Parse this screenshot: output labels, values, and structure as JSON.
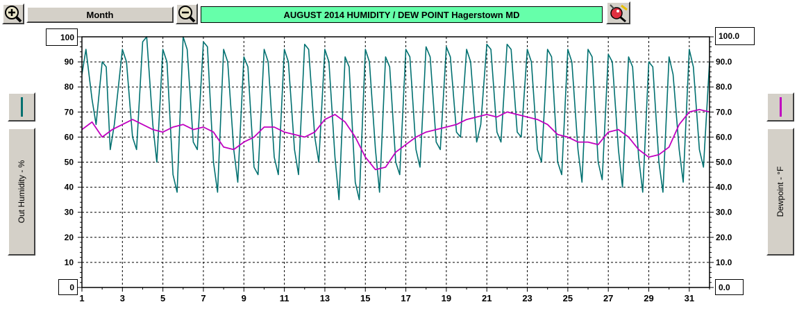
{
  "toolbar": {
    "zoom_in_icon": "magnifier-plus-icon",
    "period_label": "Month",
    "zoom_out_icon": "magnifier-minus-icon",
    "title": "AUGUST  2014  HUMIDITY / DEW POINT  Hagerstown MD",
    "settings_icon": "magnifier-wand-icon"
  },
  "left_axis": {
    "top_box": "100",
    "bottom_box": "0",
    "label": "Out Humidity - %",
    "color_swatch": "#007070"
  },
  "right_axis": {
    "top_box": "100.0",
    "bottom_box": "0.0",
    "label": "Dewpoint - °F",
    "color_swatch": "#c000c0"
  },
  "chart_data": {
    "type": "line",
    "title": "AUGUST  2014  HUMIDITY / DEW POINT  Hagerstown MD",
    "xlabel": "",
    "ylabel_left": "Out Humidity - %",
    "ylabel_right": "Dewpoint - °F",
    "xlim": [
      1,
      32
    ],
    "ylim": [
      0,
      100
    ],
    "grid": true,
    "x_ticks": [
      "1",
      "3",
      "5",
      "7",
      "9",
      "11",
      "13",
      "15",
      "17",
      "19",
      "21",
      "23",
      "25",
      "27",
      "29",
      "31"
    ],
    "y_ticks_left": [
      "10",
      "20",
      "30",
      "40",
      "50",
      "60",
      "70",
      "80",
      "90"
    ],
    "y_ticks_right": [
      "10.0",
      "20.0",
      "30.0",
      "40.0",
      "50.0",
      "60.0",
      "70.0",
      "80.0",
      "90.0"
    ],
    "series": [
      {
        "name": "Out Humidity - %",
        "color": "#007070",
        "x": [
          1.0,
          1.2,
          1.5,
          1.7,
          2.0,
          2.2,
          2.4,
          2.6,
          3.0,
          3.2,
          3.5,
          3.7,
          4.0,
          4.2,
          4.5,
          4.7,
          5.0,
          5.2,
          5.5,
          5.7,
          6.0,
          6.2,
          6.5,
          6.7,
          7.0,
          7.2,
          7.5,
          7.7,
          8.0,
          8.2,
          8.5,
          8.7,
          9.0,
          9.2,
          9.5,
          9.7,
          10.0,
          10.2,
          10.5,
          10.7,
          11.0,
          11.2,
          11.5,
          11.7,
          12.0,
          12.2,
          12.5,
          12.7,
          13.0,
          13.2,
          13.5,
          13.7,
          14.0,
          14.2,
          14.5,
          14.7,
          15.0,
          15.2,
          15.5,
          15.7,
          16.0,
          16.2,
          16.5,
          16.7,
          17.0,
          17.2,
          17.5,
          17.7,
          18.0,
          18.2,
          18.5,
          18.7,
          19.0,
          19.2,
          19.5,
          19.7,
          20.0,
          20.2,
          20.5,
          20.7,
          21.0,
          21.2,
          21.5,
          21.7,
          22.0,
          22.2,
          22.5,
          22.7,
          23.0,
          23.2,
          23.5,
          23.7,
          24.0,
          24.2,
          24.5,
          24.7,
          25.0,
          25.2,
          25.5,
          25.7,
          26.0,
          26.2,
          26.5,
          26.7,
          27.0,
          27.2,
          27.5,
          27.7,
          28.0,
          28.2,
          28.5,
          28.7,
          29.0,
          29.2,
          29.5,
          29.7,
          30.0,
          30.2,
          30.5,
          30.7,
          31.0,
          31.2,
          31.5,
          31.7,
          32.0
        ],
        "values": [
          85,
          95,
          75,
          65,
          90,
          88,
          55,
          65,
          95,
          90,
          60,
          55,
          98,
          100,
          65,
          50,
          95,
          90,
          45,
          38,
          100,
          95,
          58,
          55,
          98,
          96,
          50,
          38,
          95,
          90,
          55,
          42,
          92,
          88,
          48,
          45,
          95,
          90,
          52,
          45,
          95,
          90,
          55,
          45,
          97,
          95,
          60,
          50,
          95,
          90,
          52,
          35,
          92,
          88,
          42,
          35,
          95,
          90,
          55,
          38,
          92,
          88,
          50,
          45,
          95,
          92,
          55,
          48,
          96,
          92,
          58,
          55,
          96,
          92,
          62,
          60,
          95,
          90,
          58,
          65,
          97,
          95,
          62,
          58,
          97,
          95,
          62,
          60,
          95,
          90,
          55,
          50,
          95,
          92,
          50,
          45,
          95,
          90,
          55,
          42,
          95,
          92,
          50,
          43,
          93,
          90,
          55,
          40,
          92,
          88,
          52,
          38,
          90,
          88,
          50,
          38,
          92,
          85,
          55,
          42,
          95,
          88,
          55,
          48,
          90
        ]
      },
      {
        "name": "Dewpoint - °F",
        "color": "#c000c0",
        "x": [
          1.0,
          1.5,
          2.0,
          2.5,
          3.0,
          3.5,
          4.0,
          4.5,
          5.0,
          5.5,
          6.0,
          6.5,
          7.0,
          7.5,
          8.0,
          8.5,
          9.0,
          9.5,
          10.0,
          10.5,
          11.0,
          11.5,
          12.0,
          12.5,
          13.0,
          13.5,
          14.0,
          14.5,
          15.0,
          15.5,
          16.0,
          16.5,
          17.0,
          17.5,
          18.0,
          18.5,
          19.0,
          19.5,
          20.0,
          20.5,
          21.0,
          21.5,
          22.0,
          22.5,
          23.0,
          23.5,
          24.0,
          24.5,
          25.0,
          25.5,
          26.0,
          26.5,
          27.0,
          27.5,
          28.0,
          28.5,
          29.0,
          29.5,
          30.0,
          30.5,
          31.0,
          31.5,
          32.0
        ],
        "values": [
          63,
          66,
          60,
          63,
          65,
          67,
          65,
          63,
          62,
          64,
          65,
          63,
          64,
          62,
          56,
          55,
          58,
          60,
          64,
          64,
          62,
          61,
          60,
          62,
          67,
          69,
          66,
          60,
          52,
          47,
          48,
          54,
          57,
          60,
          62,
          63,
          64,
          65,
          67,
          68,
          69,
          68,
          70,
          69,
          68,
          67,
          65,
          61,
          60,
          58,
          58,
          57,
          62,
          63,
          60,
          55,
          52,
          53,
          56,
          65,
          70,
          71,
          70
        ]
      }
    ]
  }
}
